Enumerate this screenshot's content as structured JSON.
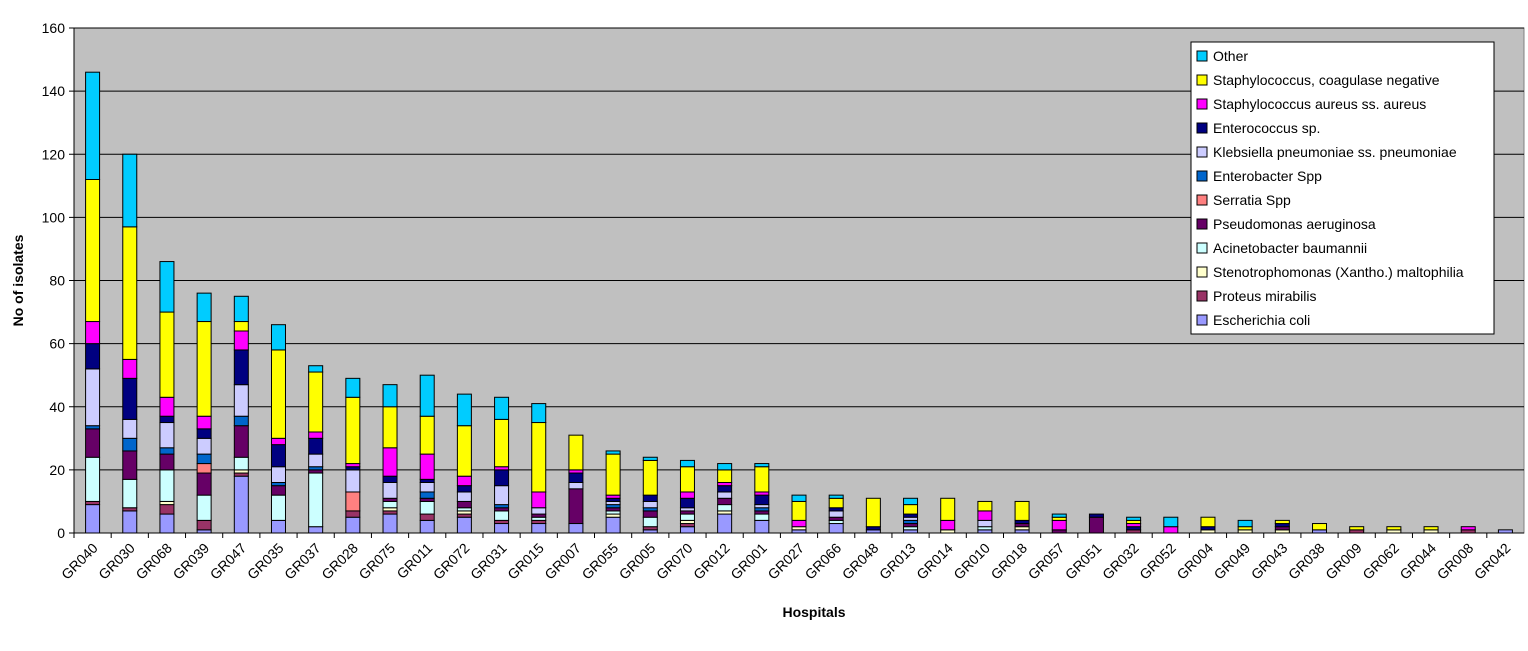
{
  "chart_data": {
    "type": "bar",
    "stacked": true,
    "xlabel": "Hospitals",
    "ylabel": "No of isolates",
    "ylim": [
      0,
      160
    ],
    "yticks": [
      0,
      20,
      40,
      60,
      80,
      100,
      120,
      140,
      160
    ],
    "grid": true,
    "legend_position": "top-right",
    "background_color": "#c0c0c0",
    "categories": [
      "GR040",
      "GR030",
      "GR068",
      "GR039",
      "GR047",
      "GR035",
      "GR037",
      "GR028",
      "GR075",
      "GR011",
      "GR072",
      "GR031",
      "GR015",
      "GR007",
      "GR055",
      "GR005",
      "GR070",
      "GR012",
      "GR001",
      "GR027",
      "GR066",
      "GR048",
      "GR013",
      "GR014",
      "GR010",
      "GR018",
      "GR057",
      "GR051",
      "GR032",
      "GR052",
      "GR004",
      "GR049",
      "GR043",
      "GR038",
      "GR009",
      "GR062",
      "GR044",
      "GR008",
      "GR042"
    ],
    "series": [
      {
        "name": "Escherichia coli",
        "color": "#9999ff",
        "values": [
          9,
          7,
          6,
          1,
          18,
          4,
          2,
          5,
          6,
          4,
          5,
          3,
          3,
          3,
          5,
          1,
          2,
          6,
          4,
          1,
          3,
          1,
          1,
          0,
          1,
          1,
          0,
          0,
          0,
          0,
          0,
          0,
          0,
          1,
          0,
          0,
          0,
          0,
          1
        ]
      },
      {
        "name": "Proteus mirabilis",
        "color": "#993366",
        "values": [
          1,
          1,
          3,
          3,
          1,
          0,
          0,
          2,
          1,
          2,
          1,
          1,
          1,
          0,
          0,
          1,
          1,
          0,
          0,
          0,
          0,
          0,
          0,
          0,
          0,
          0,
          0,
          0,
          1,
          0,
          0,
          0,
          0,
          0,
          1,
          0,
          0,
          1,
          0
        ]
      },
      {
        "name": "Stenotrophomonas (Xantho.) maltophilia",
        "color": "#ffffcc",
        "values": [
          0,
          0,
          1,
          0,
          1,
          0,
          0,
          0,
          1,
          0,
          1,
          0,
          0,
          0,
          1,
          0,
          1,
          1,
          0,
          1,
          0,
          0,
          0,
          1,
          0,
          1,
          0,
          0,
          0,
          0,
          1,
          1,
          1,
          0,
          0,
          1,
          1,
          0,
          0
        ]
      },
      {
        "name": "Acinetobacter baumannii",
        "color": "#ccffff",
        "values": [
          14,
          9,
          10,
          8,
          4,
          8,
          17,
          0,
          2,
          4,
          1,
          3,
          1,
          0,
          1,
          3,
          2,
          2,
          2,
          0,
          1,
          0,
          1,
          0,
          1,
          0,
          0,
          0,
          0,
          0,
          0,
          0,
          0,
          0,
          0,
          0,
          0,
          0,
          0
        ]
      },
      {
        "name": "Pseudomonas aeruginosa",
        "color": "#660066",
        "values": [
          9,
          9,
          5,
          7,
          10,
          3,
          1,
          0,
          1,
          1,
          2,
          1,
          1,
          11,
          1,
          2,
          1,
          2,
          1,
          0,
          1,
          0,
          1,
          0,
          0,
          1,
          1,
          5,
          0,
          0,
          0,
          0,
          1,
          0,
          0,
          0,
          0,
          0,
          0
        ]
      },
      {
        "name": "Serratia Spp",
        "color": "#ff8080",
        "values": [
          0,
          0,
          0,
          3,
          0,
          0,
          0,
          6,
          0,
          0,
          0,
          0,
          0,
          0,
          0,
          0,
          0,
          0,
          0,
          0,
          0,
          0,
          0,
          0,
          0,
          0,
          0,
          0,
          0,
          0,
          0,
          0,
          0,
          0,
          0,
          0,
          0,
          0,
          0
        ]
      },
      {
        "name": "Enterobacter Spp",
        "color": "#0066cc",
        "values": [
          1,
          4,
          2,
          3,
          3,
          1,
          1,
          0,
          0,
          2,
          0,
          1,
          0,
          0,
          1,
          1,
          0,
          0,
          1,
          0,
          0,
          0,
          1,
          0,
          0,
          0,
          0,
          0,
          0,
          0,
          0,
          0,
          0,
          0,
          0,
          0,
          0,
          0,
          0
        ]
      },
      {
        "name": "Klebsiella pneumoniae ss. pneumoniae",
        "color": "#ccccff",
        "values": [
          18,
          6,
          8,
          5,
          10,
          5,
          4,
          7,
          5,
          3,
          3,
          6,
          2,
          2,
          1,
          2,
          1,
          2,
          1,
          0,
          2,
          0,
          1,
          0,
          2,
          0,
          0,
          0,
          0,
          0,
          0,
          0,
          0,
          0,
          0,
          0,
          0,
          0,
          0
        ]
      },
      {
        "name": "Enterococcus sp.",
        "color": "#000080",
        "values": [
          8,
          13,
          2,
          3,
          11,
          7,
          5,
          1,
          2,
          1,
          2,
          5,
          0,
          3,
          1,
          2,
          3,
          2,
          3,
          0,
          1,
          1,
          1,
          0,
          0,
          1,
          0,
          1,
          1,
          0,
          1,
          0,
          1,
          0,
          0,
          0,
          0,
          0,
          0
        ]
      },
      {
        "name": "Staphylococcus aureus ss. aureus",
        "color": "#ff00ff",
        "values": [
          7,
          6,
          6,
          4,
          6,
          2,
          2,
          1,
          9,
          8,
          3,
          1,
          5,
          1,
          1,
          0,
          2,
          1,
          1,
          2,
          0,
          0,
          0,
          3,
          3,
          0,
          3,
          0,
          1,
          2,
          0,
          0,
          0,
          0,
          0,
          0,
          0,
          1,
          0
        ]
      },
      {
        "name": "Staphylococcus, coagulase negative",
        "color": "#ffff00",
        "values": [
          45,
          42,
          27,
          30,
          3,
          28,
          19,
          21,
          13,
          12,
          16,
          15,
          22,
          11,
          13,
          11,
          8,
          4,
          8,
          6,
          3,
          9,
          3,
          7,
          3,
          6,
          1,
          0,
          1,
          0,
          3,
          1,
          1,
          2,
          1,
          1,
          1,
          0,
          0
        ]
      },
      {
        "name": "Other",
        "color": "#00ccff",
        "values": [
          34,
          23,
          16,
          9,
          8,
          8,
          2,
          6,
          7,
          13,
          10,
          7,
          6,
          0,
          1,
          1,
          2,
          2,
          1,
          2,
          1,
          0,
          2,
          0,
          0,
          0,
          1,
          0,
          1,
          3,
          0,
          2,
          0,
          0,
          0,
          0,
          0,
          0,
          0
        ]
      }
    ]
  }
}
